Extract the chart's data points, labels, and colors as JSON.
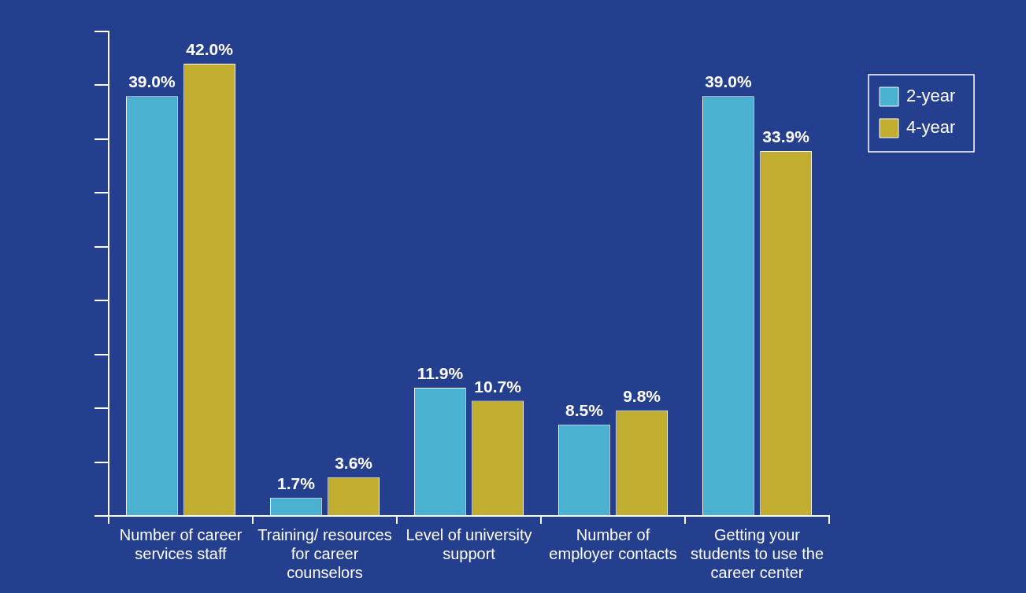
{
  "chart_data": {
    "type": "bar",
    "categories": [
      "Number of career services staff",
      "Training/ resources for career counselors",
      "Level of university support",
      "Number of employer contacts",
      "Getting your students to use the career center"
    ],
    "series": [
      {
        "name": "2-year",
        "color": "#4ab1d1",
        "values": [
          39.0,
          1.7,
          11.9,
          8.5,
          39.0
        ],
        "value_labels": [
          "39.0%",
          "1.7%",
          "11.9%",
          "8.5%",
          "39.0%"
        ]
      },
      {
        "name": "4-year",
        "color": "#c1ad2f",
        "values": [
          42.0,
          3.6,
          10.7,
          9.8,
          33.9
        ],
        "value_labels": [
          "42.0%",
          "3.6%",
          "10.7%",
          "9.8%",
          "33.9%"
        ]
      }
    ],
    "tick_labels": "x",
    "grid": false,
    "legend": "top right"
  }
}
